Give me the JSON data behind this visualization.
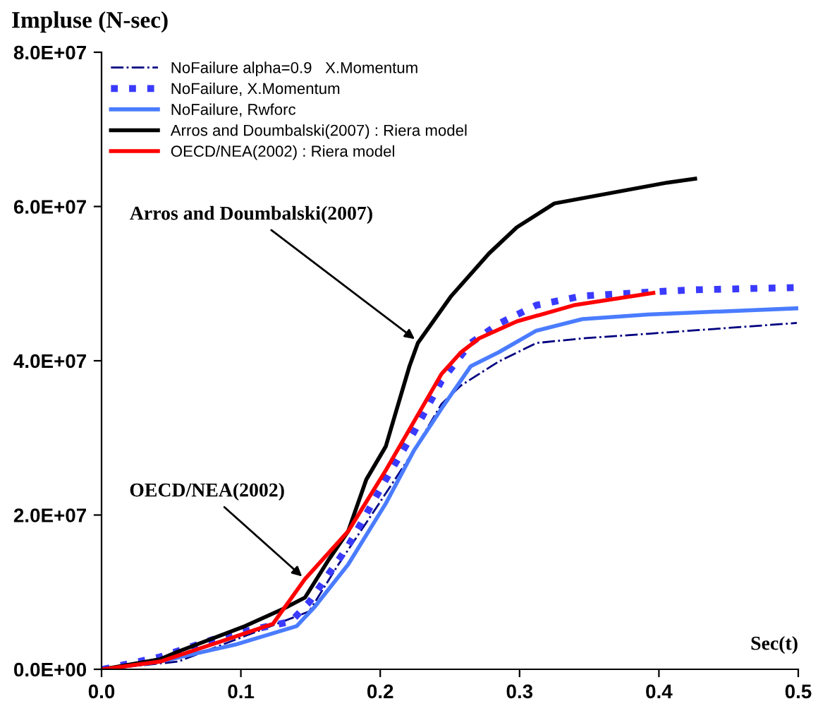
{
  "chart_data": {
    "type": "line",
    "xlabel": "Sec(t)",
    "ylabel": "Impluse (N-sec)",
    "xlim": [
      0,
      0.5
    ],
    "xticks": [
      {
        "value": 0,
        "label": "0.0"
      },
      {
        "value": 0.1,
        "label": "0.1"
      },
      {
        "value": 0.2,
        "label": "0.2"
      },
      {
        "value": 0.3,
        "label": "0.3"
      },
      {
        "value": 0.4,
        "label": "0.4"
      },
      {
        "value": 0.5,
        "label": "0.5"
      }
    ],
    "ylim": [
      0,
      80000000
    ],
    "yticks": [
      {
        "value": 0,
        "label": "0.0E+00"
      },
      {
        "value": 20000000,
        "label": "2.0E+07"
      },
      {
        "value": 40000000,
        "label": "4.0E+07"
      },
      {
        "value": 60000000,
        "label": "6.0E+07"
      },
      {
        "value": 80000000,
        "label": "8.0E+07"
      }
    ],
    "grid": false,
    "legend": "top left",
    "marker": "none",
    "series": [
      {
        "name": "NoFailure alpha=0.9   X.Momentum",
        "color": "#000080",
        "line_style": "dashdot",
        "x": [
          0.001,
          0.055,
          0.149,
          0.17,
          0.197,
          0.224,
          0.244,
          0.258,
          0.285,
          0.312,
          0.345,
          0.392,
          0.499
        ],
        "values": [
          0,
          1000000,
          7500000,
          13600000,
          20900000,
          28300000,
          34400000,
          36800000,
          39900000,
          42300000,
          42900000,
          43500000,
          44900000
        ]
      },
      {
        "name": "NoFailure, X.Momentum",
        "color": "#3a3aff",
        "line_style": "dotted",
        "x": [
          0.001,
          0.042,
          0.089,
          0.136,
          0.149,
          0.177,
          0.204,
          0.224,
          0.244,
          0.265,
          0.285,
          0.312,
          0.345,
          0.392,
          0.426,
          0.499
        ],
        "values": [
          0,
          1600000,
          4400000,
          6200000,
          8700000,
          16000000,
          24600000,
          30700000,
          37400000,
          42300000,
          44800000,
          47200000,
          48400000,
          48900000,
          49200000,
          49500000
        ]
      },
      {
        "name": "NoFailure, Rwforc",
        "color": "#4a7cff",
        "line_style": "solid",
        "x": [
          0.001,
          0.042,
          0.096,
          0.14,
          0.153,
          0.177,
          0.204,
          0.224,
          0.244,
          0.265,
          0.285,
          0.312,
          0.345,
          0.392,
          0.499
        ],
        "values": [
          0,
          1000000,
          3200000,
          5600000,
          8100000,
          13600000,
          21500000,
          28300000,
          33800000,
          39300000,
          41100000,
          43900000,
          45400000,
          46000000,
          46800000
        ]
      },
      {
        "name": "Arros and Doumbalski(2007) : Riera model",
        "color": "#000000",
        "line_style": "solid",
        "x": [
          0.001,
          0.042,
          0.055,
          0.103,
          0.13,
          0.146,
          0.163,
          0.177,
          0.19,
          0.204,
          0.211,
          0.221,
          0.227,
          0.251,
          0.278,
          0.298,
          0.325,
          0.406,
          0.426
        ],
        "values": [
          0,
          1300000,
          2300000,
          5600000,
          7800000,
          9300000,
          14200000,
          17900000,
          24600000,
          28900000,
          33200000,
          39300000,
          42300000,
          48400000,
          53900000,
          57300000,
          60400000,
          63100000,
          63600000
        ]
      },
      {
        "name": "OECD/NEA(2002) : Riera model",
        "color": "#ff0000",
        "line_style": "solid",
        "x": [
          0.001,
          0.042,
          0.089,
          0.123,
          0.146,
          0.177,
          0.204,
          0.244,
          0.258,
          0.271,
          0.298,
          0.339,
          0.396
        ],
        "values": [
          0,
          1000000,
          3800000,
          5900000,
          11700000,
          17900000,
          25800000,
          38300000,
          41100000,
          42900000,
          45100000,
          47200000,
          48800000
        ]
      }
    ],
    "annotations": [
      {
        "text": "Arros and Doumbalski(2007)",
        "x": 0.227,
        "y": 42500000
      },
      {
        "text": "OECD/NEA(2002)",
        "x": 0.146,
        "y": 11700000
      }
    ]
  }
}
